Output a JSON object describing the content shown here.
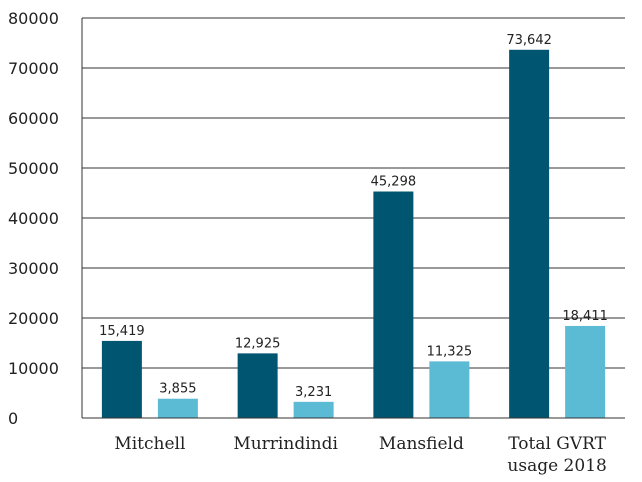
{
  "chart_data": {
    "type": "bar",
    "title": "",
    "xlabel": "",
    "ylabel": "",
    "categories": [
      "Mitchell",
      "Murrindindi",
      "Mansfield",
      "Total GVRT usage 2018"
    ],
    "category_lines": [
      [
        "Mitchell"
      ],
      [
        "Murrindindi"
      ],
      [
        "Mansfield"
      ],
      [
        "Total GVRT",
        "usage 2018"
      ]
    ],
    "series": [
      {
        "values": [
          15419,
          12925,
          45298,
          73642
        ],
        "labels": [
          "15,419",
          "12,925",
          "45,298",
          "73,642"
        ],
        "color": "#005570"
      },
      {
        "values": [
          3855,
          3231,
          11325,
          18411
        ],
        "labels": [
          "3,855",
          "3,231",
          "11,325",
          "18,411"
        ],
        "color": "#5bbad4"
      }
    ],
    "ylim": [
      0,
      80000
    ],
    "yticks": [
      0,
      10000,
      20000,
      30000,
      40000,
      50000,
      60000,
      70000,
      80000
    ],
    "ytick_labels": [
      "0",
      "10000",
      "20000",
      "30000",
      "40000",
      "50000",
      "60000",
      "70000",
      "80000"
    ],
    "grid": true,
    "legend": "none"
  }
}
